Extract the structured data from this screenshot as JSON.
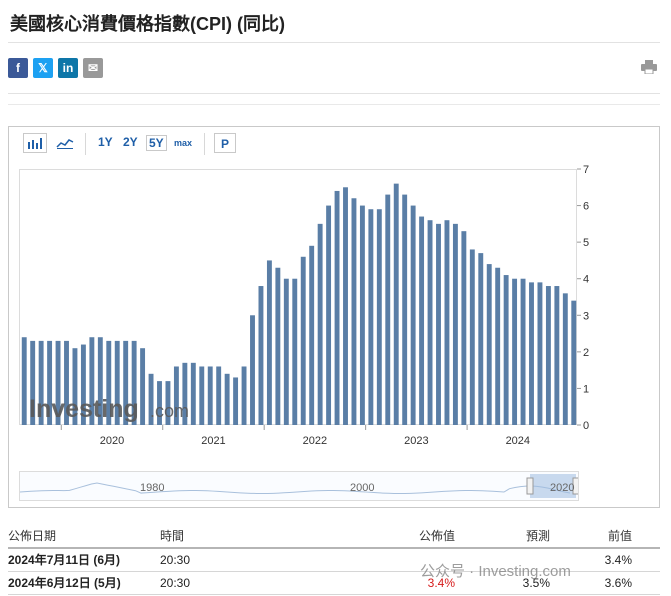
{
  "page_title": "美國核心消費價格指數(CPI) (同比)",
  "share": {
    "facebook_label": "f",
    "twitter_label": "𝕏",
    "linkedin_label": "in",
    "email_label": "✉",
    "colors": {
      "facebook": "#3b5998",
      "twitter": "#1da1f2",
      "linkedin": "#0e76a8",
      "email": "#999999"
    }
  },
  "toolbar": {
    "ranges": [
      "1Y",
      "2Y",
      "5Y",
      "max"
    ],
    "active_range": "5Y",
    "p_label": "P"
  },
  "chart_data": {
    "type": "bar",
    "bar_color": "#5a7ea6",
    "y_axis_position": "right",
    "ylim": [
      0,
      7
    ],
    "yticks": [
      0,
      1,
      2,
      3,
      4,
      5,
      6,
      7
    ],
    "xticks": [
      "2020",
      "2021",
      "2022",
      "2023",
      "2024"
    ],
    "x_start": "2019-08",
    "x_end": "2024-06",
    "values": [
      2.4,
      2.3,
      2.3,
      2.3,
      2.3,
      2.3,
      2.1,
      2.2,
      2.4,
      2.4,
      2.3,
      2.3,
      2.3,
      2.3,
      2.1,
      1.4,
      1.2,
      1.2,
      1.6,
      1.7,
      1.7,
      1.6,
      1.6,
      1.6,
      1.4,
      1.3,
      1.6,
      3.0,
      3.8,
      4.5,
      4.3,
      4.0,
      4.0,
      4.6,
      4.9,
      5.5,
      6.0,
      6.4,
      6.5,
      6.2,
      6.0,
      5.9,
      5.9,
      6.3,
      6.6,
      6.3,
      6.0,
      5.7,
      5.6,
      5.5,
      5.6,
      5.5,
      5.3,
      4.8,
      4.7,
      4.4,
      4.3,
      4.1,
      4.0,
      4.0,
      3.9,
      3.9,
      3.8,
      3.8,
      3.6,
      3.4
    ]
  },
  "navigator": {
    "labels": [
      "1980",
      "2000",
      "2020"
    ]
  },
  "watermark": {
    "brand": "Investing",
    "suffix": ".com",
    "wechat": "公众号 · Investing.com"
  },
  "table": {
    "headers": [
      "公佈日期",
      "時間",
      "公佈值",
      "預測",
      "前值"
    ],
    "rows": [
      {
        "date": "2024年7月11日 (6月)",
        "time": "20:30",
        "actual": "",
        "forecast": "",
        "previous": "3.4%"
      },
      {
        "date": "2024年6月12日 (5月)",
        "time": "20:30",
        "actual": "3.4%",
        "forecast": "3.5%",
        "previous": "3.6%"
      }
    ]
  }
}
